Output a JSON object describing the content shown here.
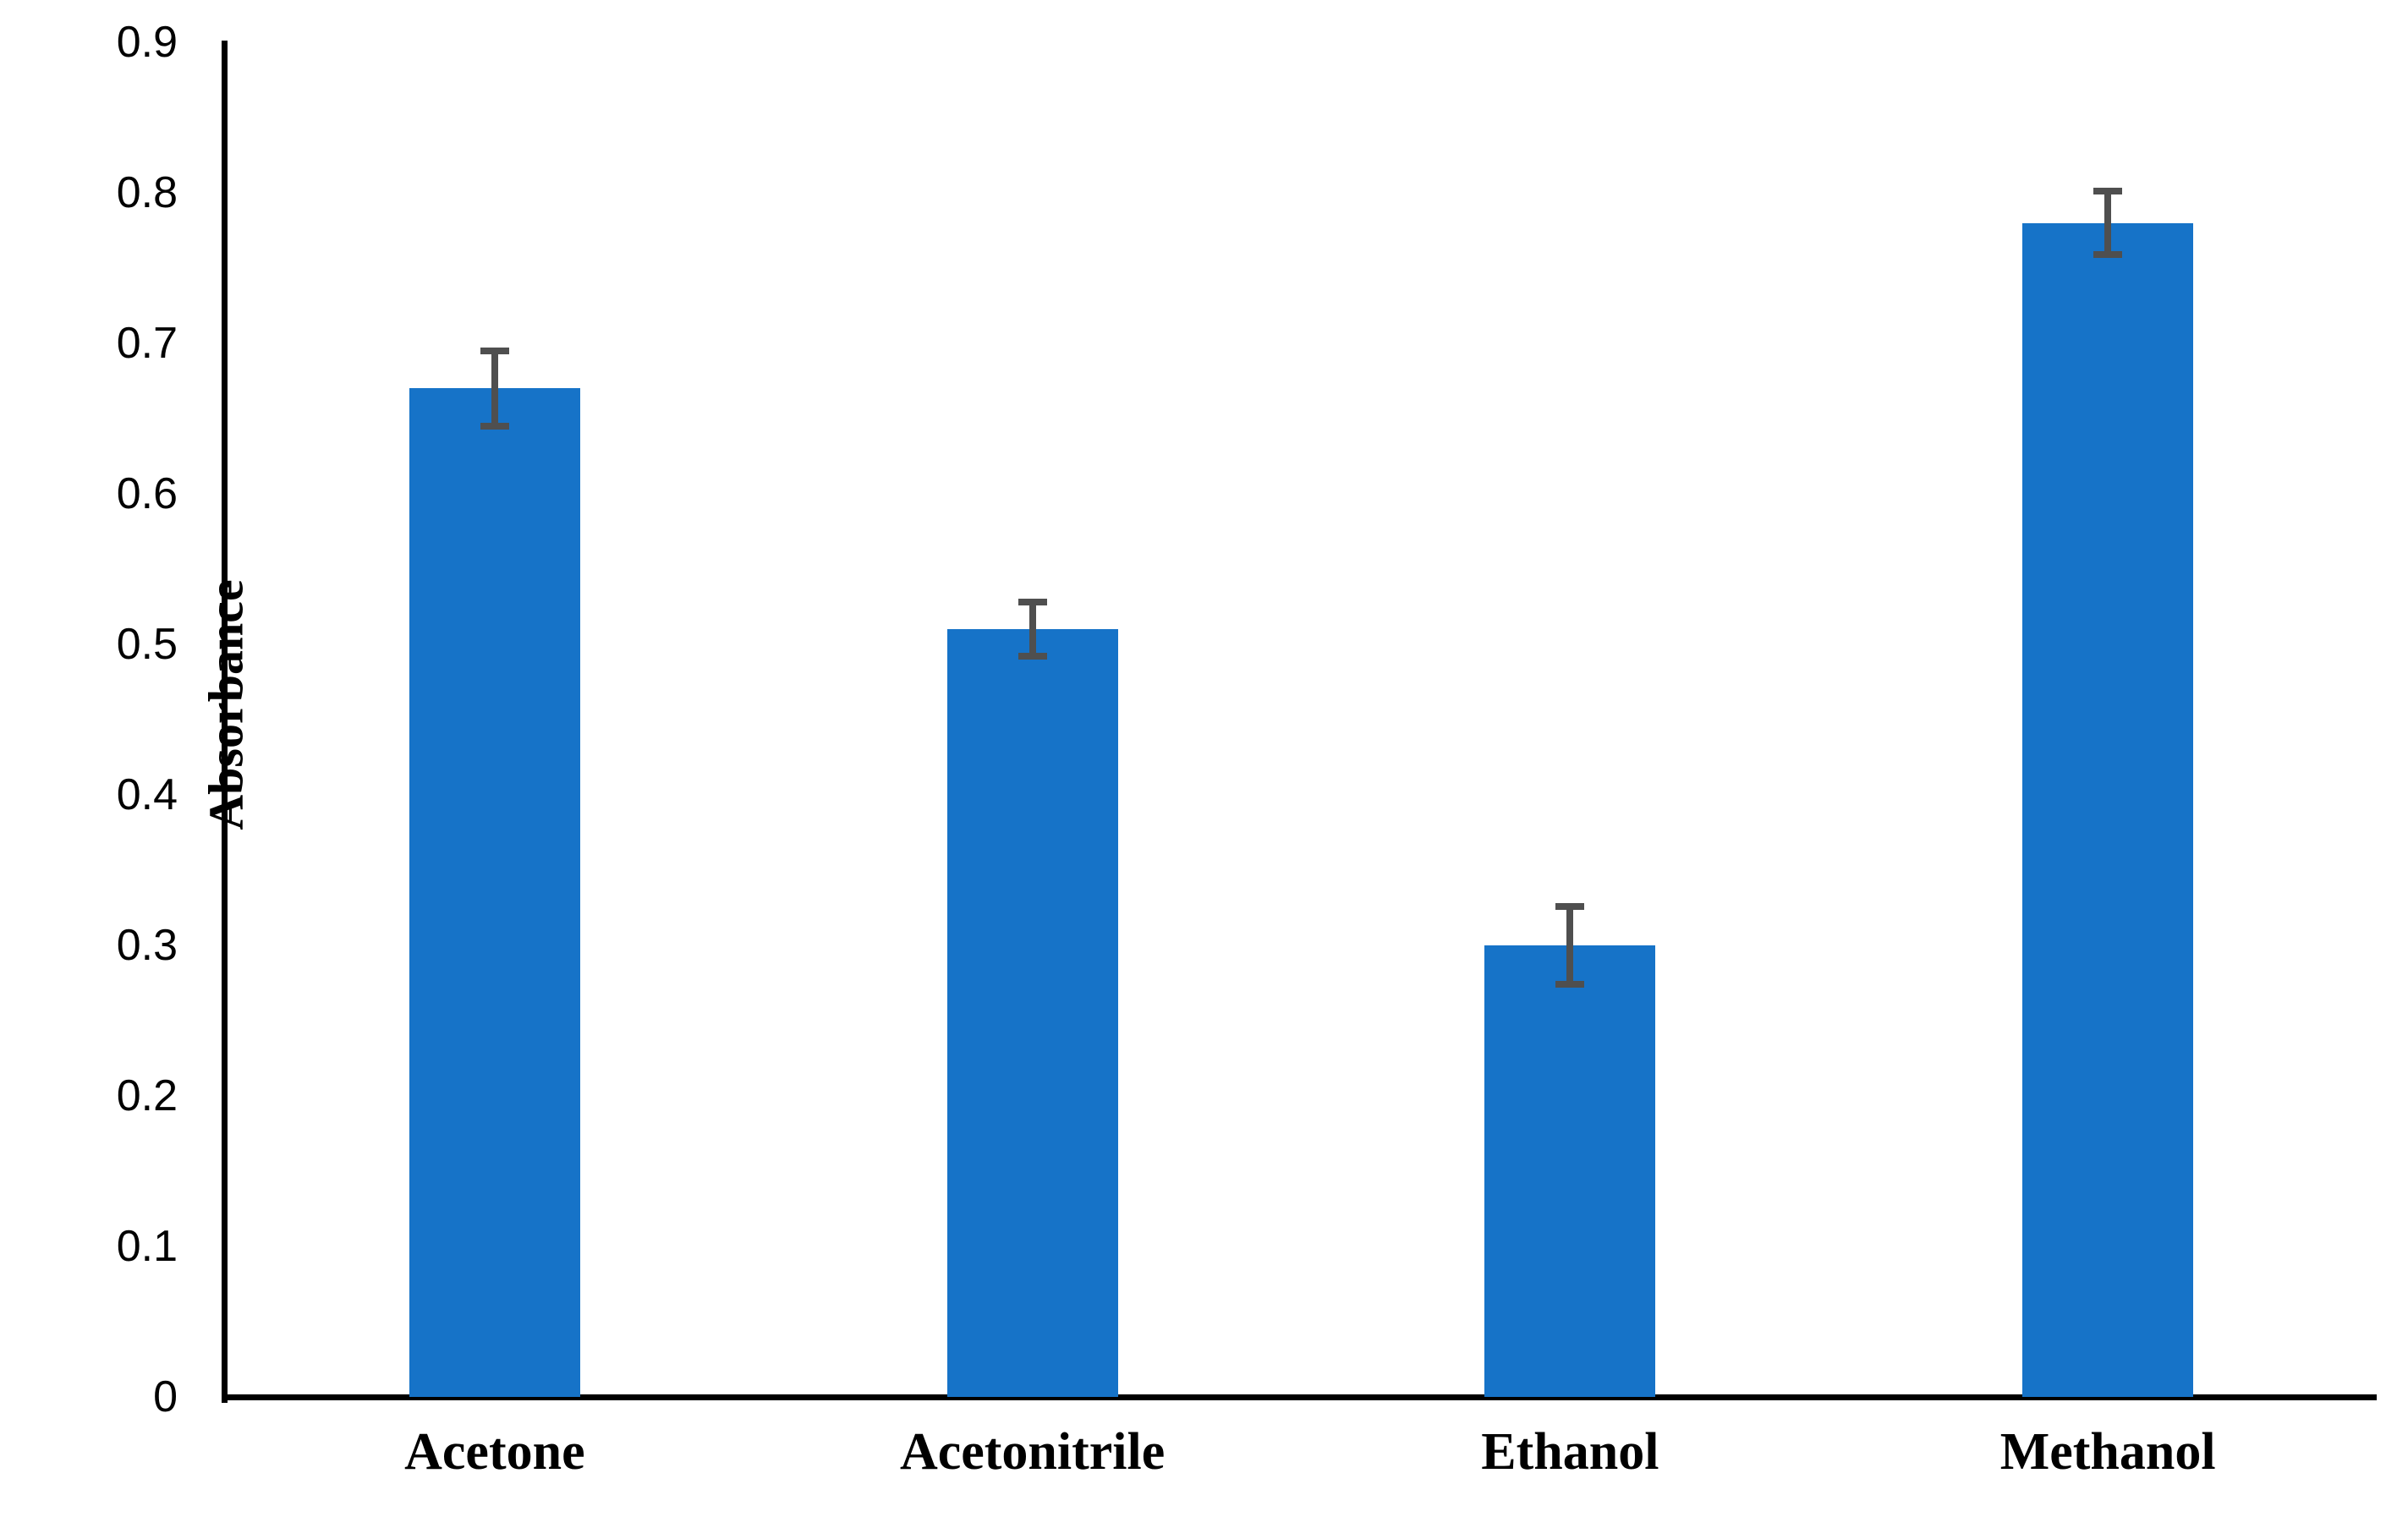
{
  "chart_data": {
    "type": "bar",
    "title": "",
    "ylabel": "Absorbance",
    "xlabel": "",
    "categories": [
      "Acetone",
      "Acetonitrile",
      "Ethanol",
      "Methanol"
    ],
    "values": [
      0.67,
      0.51,
      0.3,
      0.78
    ],
    "error_bars": [
      0.025,
      0.018,
      0.026,
      0.021
    ],
    "ylim": [
      0,
      0.9
    ],
    "ytick_labels": [
      "0",
      "0.1",
      "0.2",
      "0.3",
      "0.4",
      "0.5",
      "0.6",
      "0.7",
      "0.8",
      "0.9"
    ],
    "grid": "off",
    "legend": "none",
    "bar_color": "#1673C8",
    "error_bar_color": "#4F4F4F",
    "axis_color": "#000000",
    "text_color": "#000000"
  }
}
